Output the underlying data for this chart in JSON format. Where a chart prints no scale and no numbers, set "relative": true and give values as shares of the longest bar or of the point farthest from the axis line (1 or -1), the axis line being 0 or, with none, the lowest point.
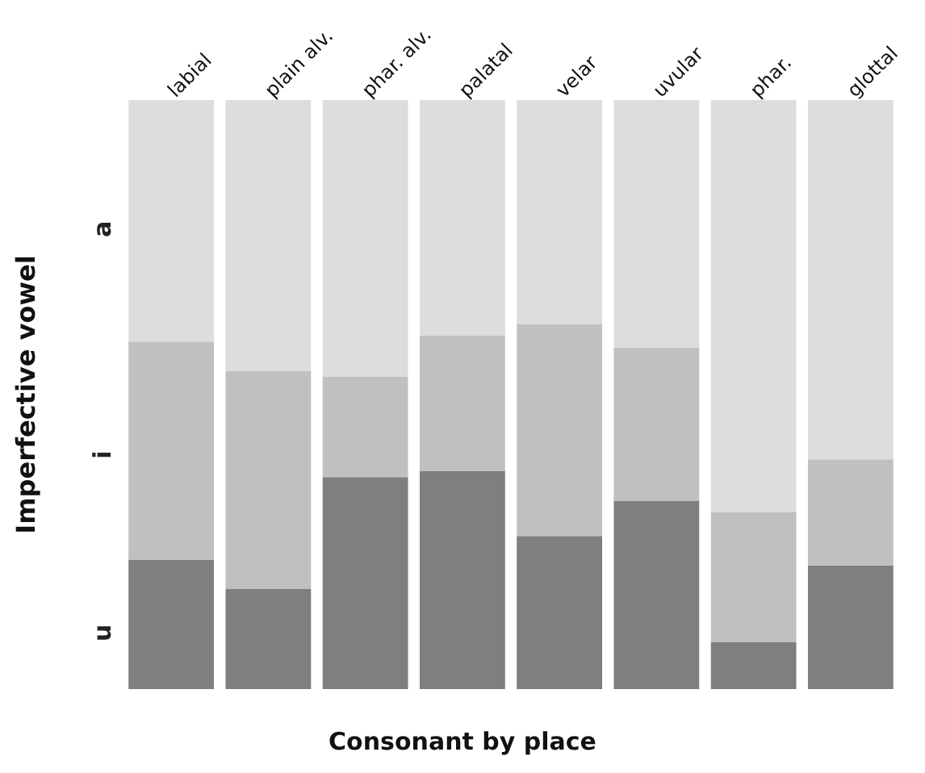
{
  "chart_data": {
    "type": "bar",
    "stacked": true,
    "relative": true,
    "categories": [
      "labial",
      "plain alv.",
      "phar. alv.",
      "palatal",
      "velar",
      "uvular",
      "phar.",
      "glottal"
    ],
    "xlabel": "Consonant by place",
    "ylabel": "Imperfective vowel",
    "series": [
      {
        "name": "u",
        "color": "#7f7f7f",
        "values": [
          0.22,
          0.17,
          0.36,
          0.37,
          0.26,
          0.32,
          0.08,
          0.21
        ]
      },
      {
        "name": "i",
        "color": "#c0c0c0",
        "values": [
          0.37,
          0.37,
          0.17,
          0.23,
          0.36,
          0.26,
          0.22,
          0.18
        ]
      },
      {
        "name": "a",
        "color": "#dddddd",
        "values": [
          0.41,
          0.46,
          0.47,
          0.4,
          0.38,
          0.42,
          0.7,
          0.61
        ]
      }
    ],
    "legend": false
  }
}
